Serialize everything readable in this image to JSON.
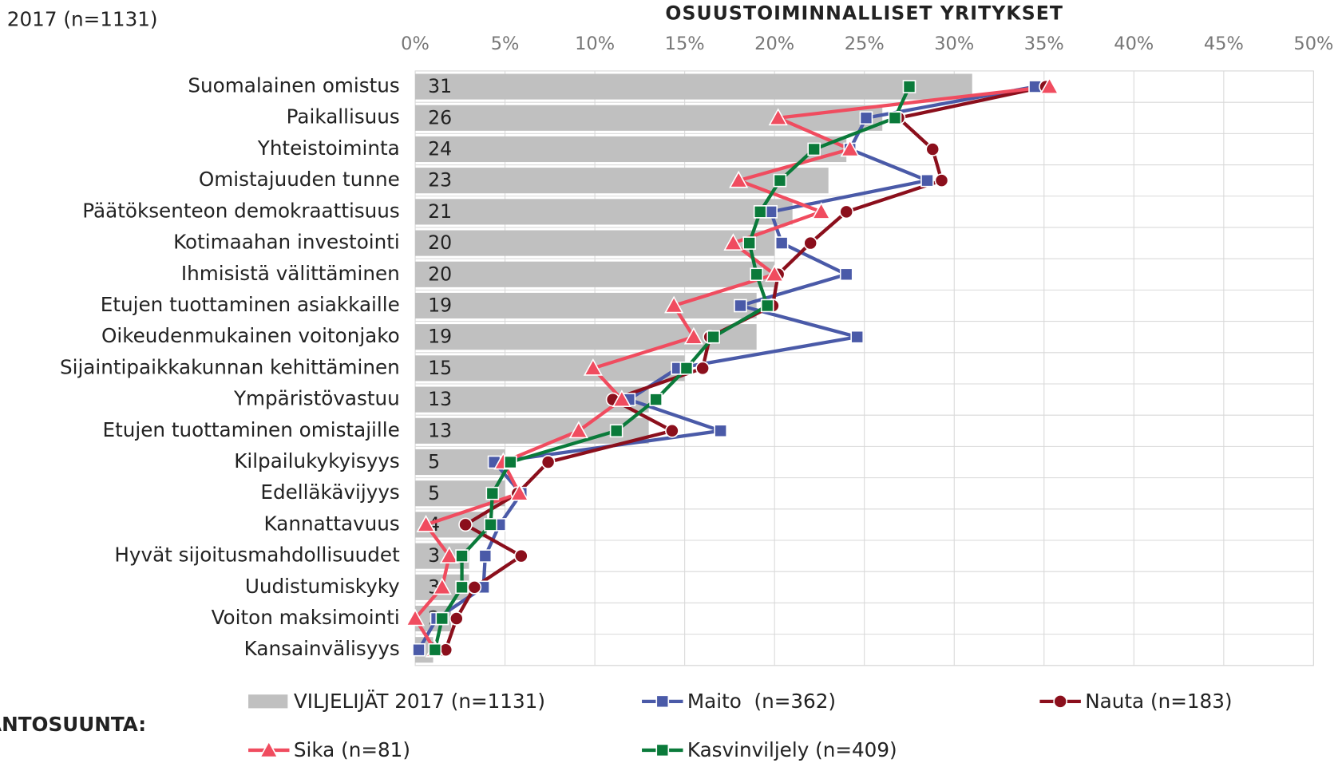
{
  "chart_data": {
    "type": "bar",
    "title": "OSUUSTOIMINNALLISET YRITYKSET",
    "subtitle": "2017 (n=1131)",
    "legend_title": "TANTOSUUNTA:",
    "orientation": "horizontal",
    "categories": [
      "Suomalainen omistus",
      "Paikallisuus",
      "Yhteistoiminta",
      "Omistajuuden tunne",
      "Päätöksenteon demokraattisuus",
      "Kotimaahan investointi",
      "Ihmisistä välittäminen",
      "Etujen tuottaminen asiakkaille",
      "Oikeudenmukainen voitonjako",
      "Sijaintipaikkakunnan kehittäminen",
      "Ympäristövastuu",
      "Etujen tuottaminen omistajille",
      "Kilpailukykyisyys",
      "Edelläkävijyys",
      "Kannattavuus",
      "Hyvät sijoitusmahdollisuudet",
      "Uudistumiskyky",
      "Voiton maksimointi",
      "Kansainvälisyys"
    ],
    "series": [
      {
        "name": "VILJELIJÄT 2017 (n=1131)",
        "type": "bar",
        "color": "#c0c0c0",
        "values": [
          31,
          26,
          24,
          23,
          21,
          20,
          20,
          19,
          19,
          15,
          13,
          13,
          5,
          5,
          4,
          3,
          3,
          2,
          1
        ]
      },
      {
        "name": "Maito  (n=362)",
        "type": "line",
        "marker": "square",
        "color": "#4a5aa8",
        "values": [
          34.5,
          25.1,
          24.2,
          28.5,
          19.8,
          20.4,
          24.0,
          18.1,
          24.6,
          14.6,
          11.9,
          17.0,
          4.4,
          5.9,
          4.7,
          3.9,
          3.8,
          1.2,
          0.2
        ]
      },
      {
        "name": "Nauta (n=183)",
        "type": "line",
        "marker": "circle",
        "color": "#8b0f1c",
        "values": [
          35.1,
          26.9,
          28.8,
          29.3,
          24.0,
          22.0,
          20.2,
          19.9,
          16.4,
          16.0,
          11.0,
          14.3,
          7.4,
          5.7,
          2.8,
          5.9,
          3.3,
          2.3,
          1.7
        ]
      },
      {
        "name": "Sika (n=81)",
        "type": "line",
        "marker": "triangle",
        "color": "#f04c5f",
        "values": [
          35.3,
          20.2,
          24.2,
          18.0,
          22.6,
          17.7,
          20.0,
          14.4,
          15.5,
          9.9,
          11.5,
          9.1,
          4.9,
          5.8,
          0.6,
          1.9,
          1.5,
          0,
          1.1
        ]
      },
      {
        "name": "Kasvinviljely (n=409)",
        "type": "line",
        "marker": "square",
        "color": "#0a7a3a",
        "values": [
          27.5,
          26.7,
          22.2,
          20.3,
          19.2,
          18.6,
          19.0,
          19.6,
          16.6,
          15.1,
          13.4,
          11.2,
          5.3,
          4.3,
          4.2,
          2.6,
          2.6,
          1.5,
          1.1
        ]
      }
    ],
    "xlim": [
      0,
      50
    ],
    "xticks": [
      {
        "value": 0,
        "label": "0%"
      },
      {
        "value": 5,
        "label": "5%"
      },
      {
        "value": 10,
        "label": "10%"
      },
      {
        "value": 15,
        "label": "15%"
      },
      {
        "value": 20,
        "label": "20%"
      },
      {
        "value": 25,
        "label": "25%"
      },
      {
        "value": 30,
        "label": "30%"
      },
      {
        "value": 35,
        "label": "35%"
      },
      {
        "value": 40,
        "label": "40%"
      },
      {
        "value": 45,
        "label": "45%"
      },
      {
        "value": 50,
        "label": "50%"
      }
    ],
    "grid": true
  }
}
